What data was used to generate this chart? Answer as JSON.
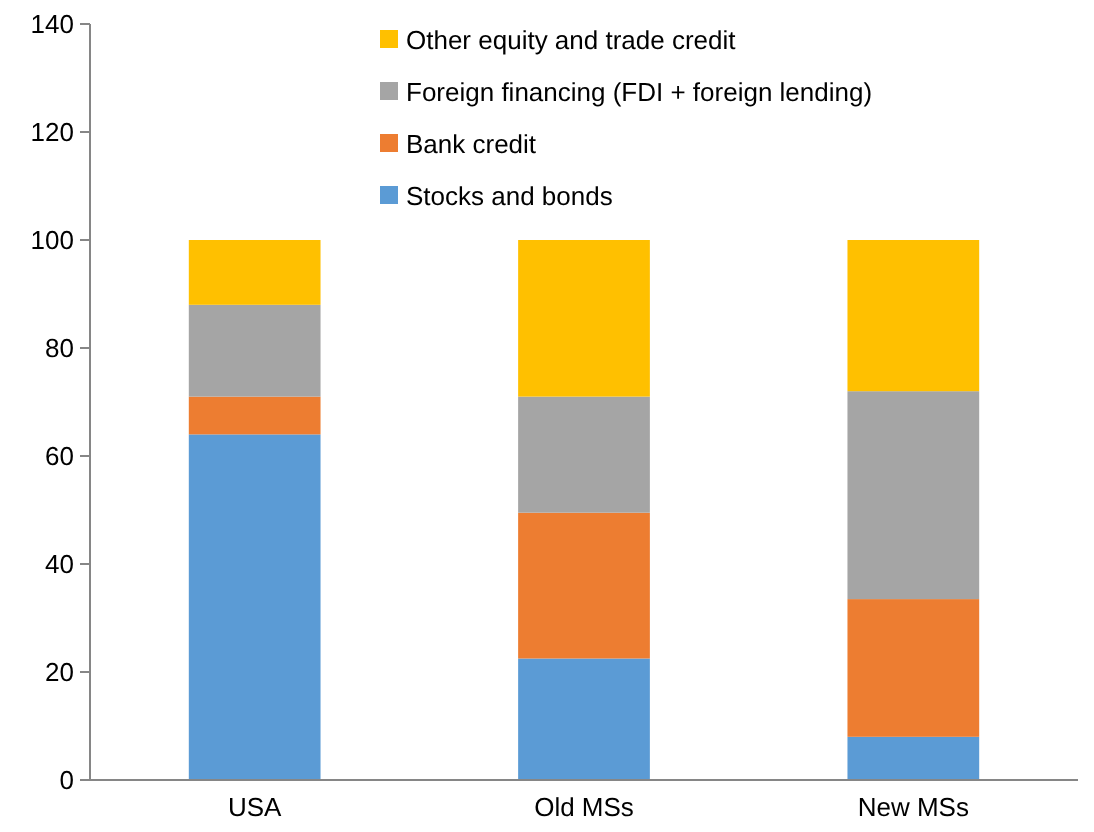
{
  "chart_data": {
    "type": "bar",
    "stacked": true,
    "categories": [
      "USA",
      "Old MSs",
      "New MSs"
    ],
    "series": [
      {
        "name": "Stocks and bonds",
        "color": "#5b9bd5",
        "values": [
          64,
          22.5,
          8
        ]
      },
      {
        "name": "Bank credit",
        "color": "#ed7d31",
        "values": [
          7,
          27,
          25.5
        ]
      },
      {
        "name": "Foreign financing (FDI + foreign lending)",
        "color": "#a5a5a5",
        "values": [
          17,
          21.5,
          38.5
        ]
      },
      {
        "name": "Other equity and trade credit",
        "color": "#ffc000",
        "values": [
          12,
          29,
          28
        ]
      }
    ],
    "ylim": [
      0,
      140
    ],
    "yticks": [
      0,
      20,
      40,
      60,
      80,
      100,
      120,
      140
    ],
    "legend": "top",
    "grid": false
  }
}
